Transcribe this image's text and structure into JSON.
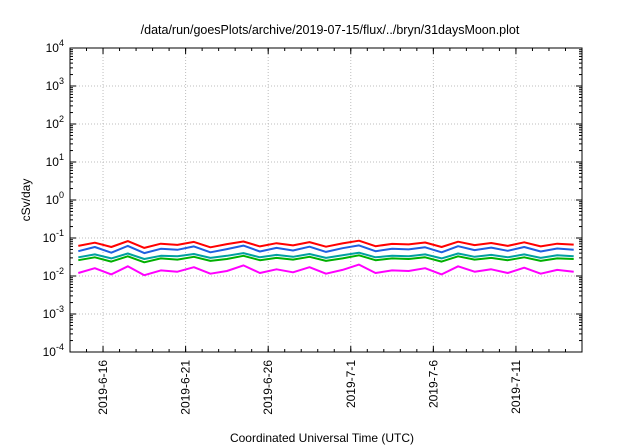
{
  "chart_data": {
    "type": "line",
    "title": "/data/run/goesPlots/archive/2019-07-15/flux/../bryn/31daysMoon.plot",
    "xlabel": "Coordinated Universal Time (UTC)",
    "ylabel": "cSv/day",
    "yscale": "log",
    "ylim": [
      0.0001,
      10000
    ],
    "xlim": [
      "2019-06-14",
      "2019-07-15"
    ],
    "grid": true,
    "y_ticks": [
      {
        "base": "10",
        "exp": "4",
        "value": 10000
      },
      {
        "base": "10",
        "exp": "3",
        "value": 1000
      },
      {
        "base": "10",
        "exp": "2",
        "value": 100
      },
      {
        "base": "10",
        "exp": "1",
        "value": 10
      },
      {
        "base": "10",
        "exp": "0",
        "value": 1
      },
      {
        "base": "10",
        "exp": "-1",
        "value": 0.1
      },
      {
        "base": "10",
        "exp": "-2",
        "value": 0.01
      },
      {
        "base": "10",
        "exp": "-3",
        "value": 0.001
      },
      {
        "base": "10",
        "exp": "-4",
        "value": 0.0001
      }
    ],
    "x_ticks": [
      {
        "label": "2019-6-16",
        "date": "2019-06-16"
      },
      {
        "label": "2019-6-21",
        "date": "2019-06-21"
      },
      {
        "label": "2019-6-26",
        "date": "2019-06-26"
      },
      {
        "label": "2019-7-1",
        "date": "2019-07-01"
      },
      {
        "label": "2019-7-6",
        "date": "2019-07-06"
      },
      {
        "label": "2019-7-11",
        "date": "2019-07-11"
      }
    ],
    "series": [
      {
        "color": "#ff0000",
        "values": [
          0.062,
          0.075,
          0.058,
          0.083,
          0.055,
          0.071,
          0.066,
          0.079,
          0.057,
          0.069,
          0.081,
          0.06,
          0.073,
          0.064,
          0.078,
          0.059,
          0.072,
          0.085,
          0.061,
          0.07,
          0.068,
          0.076,
          0.058,
          0.08,
          0.065,
          0.074,
          0.062,
          0.077,
          0.06,
          0.071,
          0.067
        ]
      },
      {
        "color": "#1f5fe0",
        "values": [
          0.045,
          0.058,
          0.041,
          0.062,
          0.04,
          0.052,
          0.049,
          0.06,
          0.042,
          0.051,
          0.063,
          0.044,
          0.055,
          0.047,
          0.059,
          0.043,
          0.054,
          0.064,
          0.045,
          0.052,
          0.05,
          0.057,
          0.042,
          0.061,
          0.048,
          0.056,
          0.046,
          0.058,
          0.044,
          0.053,
          0.049
        ]
      },
      {
        "color": "#00a0a0",
        "values": [
          0.031,
          0.037,
          0.029,
          0.039,
          0.028,
          0.034,
          0.033,
          0.038,
          0.03,
          0.034,
          0.04,
          0.031,
          0.036,
          0.032,
          0.038,
          0.03,
          0.035,
          0.041,
          0.031,
          0.034,
          0.033,
          0.037,
          0.029,
          0.039,
          0.032,
          0.036,
          0.031,
          0.037,
          0.03,
          0.035,
          0.033
        ]
      },
      {
        "color": "#00b000",
        "values": [
          0.026,
          0.031,
          0.024,
          0.033,
          0.023,
          0.029,
          0.027,
          0.032,
          0.025,
          0.028,
          0.034,
          0.026,
          0.03,
          0.027,
          0.032,
          0.025,
          0.029,
          0.035,
          0.026,
          0.029,
          0.028,
          0.031,
          0.024,
          0.033,
          0.027,
          0.03,
          0.026,
          0.031,
          0.025,
          0.029,
          0.028
        ]
      },
      {
        "color": "#ff00ff",
        "values": [
          0.012,
          0.016,
          0.011,
          0.018,
          0.0105,
          0.014,
          0.013,
          0.017,
          0.0115,
          0.0135,
          0.019,
          0.012,
          0.015,
          0.0125,
          0.017,
          0.0115,
          0.0145,
          0.02,
          0.012,
          0.014,
          0.0135,
          0.016,
          0.011,
          0.018,
          0.013,
          0.015,
          0.012,
          0.0165,
          0.0115,
          0.0145,
          0.013
        ]
      }
    ]
  }
}
